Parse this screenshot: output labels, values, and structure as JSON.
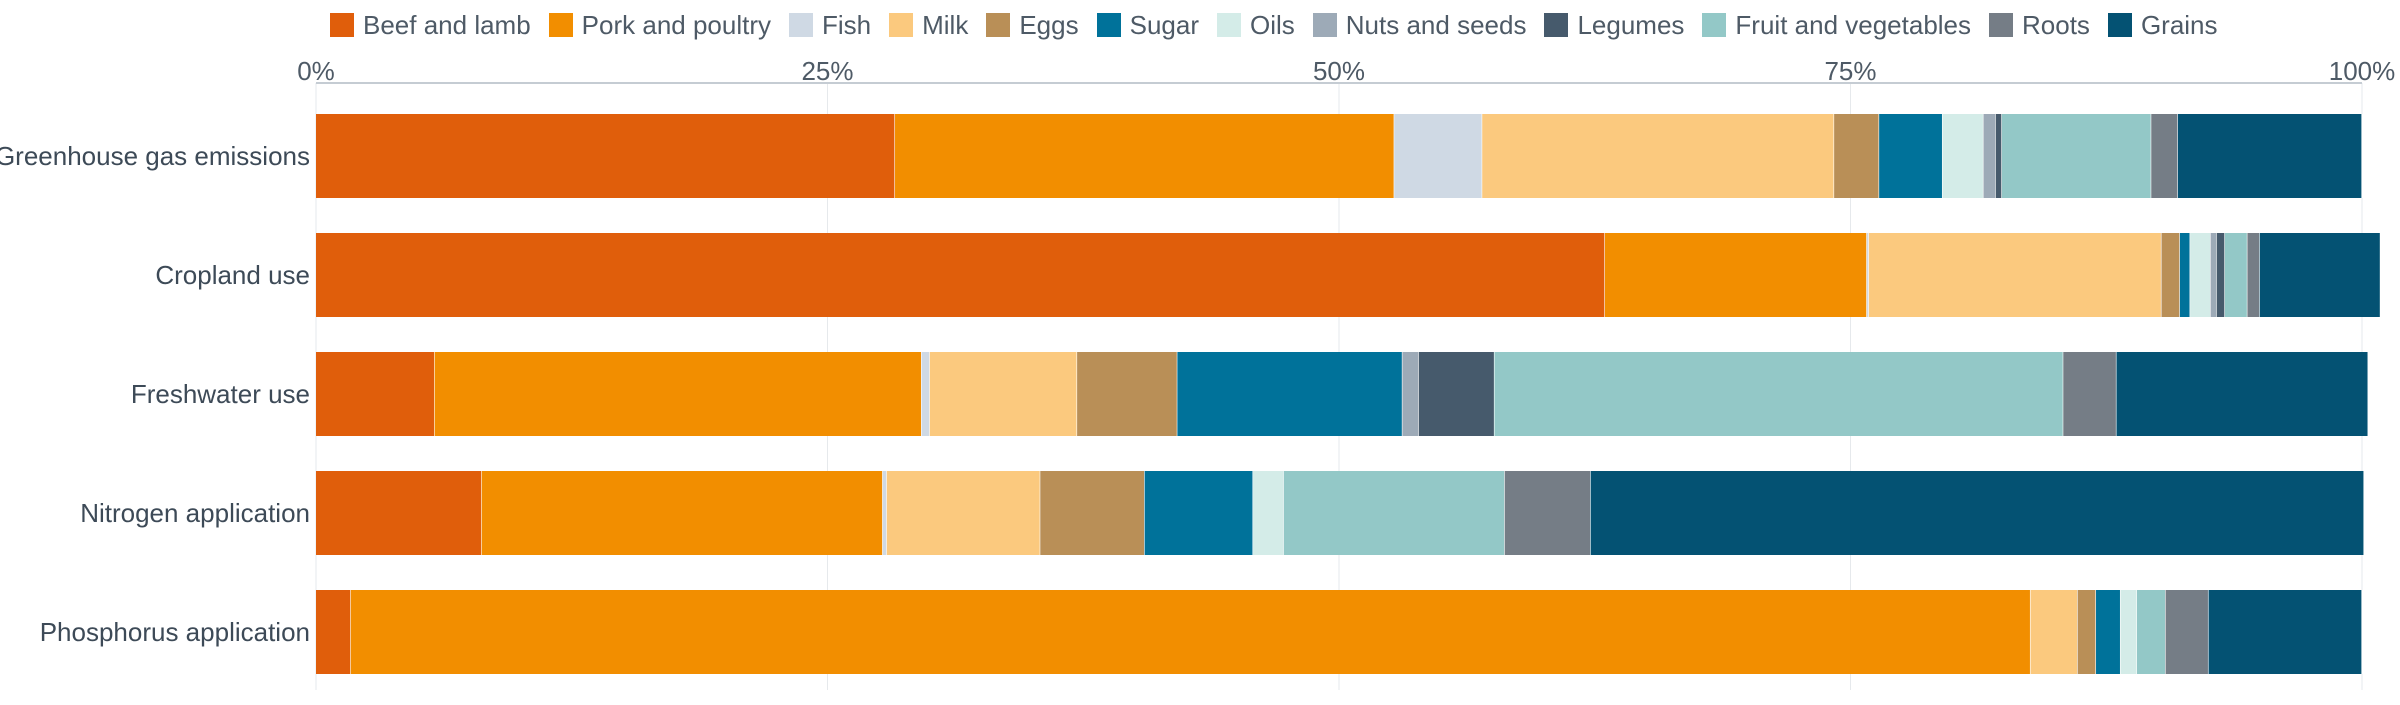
{
  "chart_data": {
    "type": "bar",
    "orientation": "horizontal",
    "stacked": true,
    "categories": [
      "Greenhouse gas emissions",
      "Cropland use",
      "Freshwater use",
      "Nitrogen application",
      "Phosphorus application"
    ],
    "xlim": [
      0,
      100
    ],
    "x_tick_labels": [
      "0%",
      "25%",
      "50%",
      "75%",
      "100%"
    ],
    "grid": true,
    "legend_position": "top",
    "series": [
      {
        "name": "Beef and lamb",
        "color": "#e05e0b",
        "values": [
          28.3,
          63.0,
          5.8,
          8.1,
          1.7
        ]
      },
      {
        "name": "Pork and poultry",
        "color": "#f28e00",
        "values": [
          24.4,
          12.8,
          23.8,
          19.6,
          82.1
        ]
      },
      {
        "name": "Fish",
        "color": "#cfd9e4",
        "values": [
          4.3,
          0.1,
          0.4,
          0.2,
          0.0
        ]
      },
      {
        "name": "Milk",
        "color": "#fbc97e",
        "values": [
          17.2,
          14.3,
          7.2,
          7.5,
          2.3
        ]
      },
      {
        "name": "Eggs",
        "color": "#b98f57",
        "values": [
          2.2,
          0.9,
          4.9,
          5.1,
          0.9
        ]
      },
      {
        "name": "Sugar",
        "color": "#00729a",
        "values": [
          3.1,
          0.5,
          11.0,
          5.3,
          1.2
        ]
      },
      {
        "name": "Oils",
        "color": "#d4ece8",
        "values": [
          2.0,
          1.0,
          0.0,
          1.5,
          0.8
        ]
      },
      {
        "name": "Nuts and seeds",
        "color": "#9daab7",
        "values": [
          0.6,
          0.3,
          0.8,
          0.0,
          0.0
        ]
      },
      {
        "name": "Legumes",
        "color": "#465a6c",
        "values": [
          0.3,
          0.4,
          3.7,
          0.0,
          0.0
        ]
      },
      {
        "name": "Fruit and vegetables",
        "color": "#93c8c7",
        "values": [
          7.3,
          1.1,
          27.8,
          10.8,
          1.4
        ]
      },
      {
        "name": "Roots",
        "color": "#757d86",
        "values": [
          1.3,
          0.6,
          2.6,
          4.2,
          2.1
        ]
      },
      {
        "name": "Grains",
        "color": "#045273",
        "values": [
          9.0,
          5.9,
          12.3,
          37.8,
          7.5
        ]
      }
    ]
  }
}
